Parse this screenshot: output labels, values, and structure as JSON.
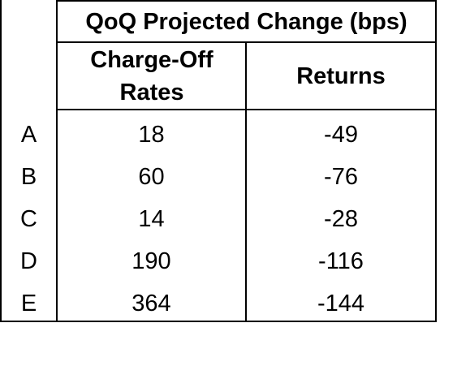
{
  "table": {
    "title": "QoQ Projected Change (bps)",
    "columns": [
      "Charge-Off Rates",
      "Returns"
    ],
    "rows": [
      [
        "A",
        18,
        -49
      ],
      [
        "B",
        60,
        -76
      ],
      [
        "C",
        14,
        -28
      ],
      [
        "D",
        190,
        -116
      ],
      [
        "E",
        364,
        -144
      ]
    ]
  }
}
